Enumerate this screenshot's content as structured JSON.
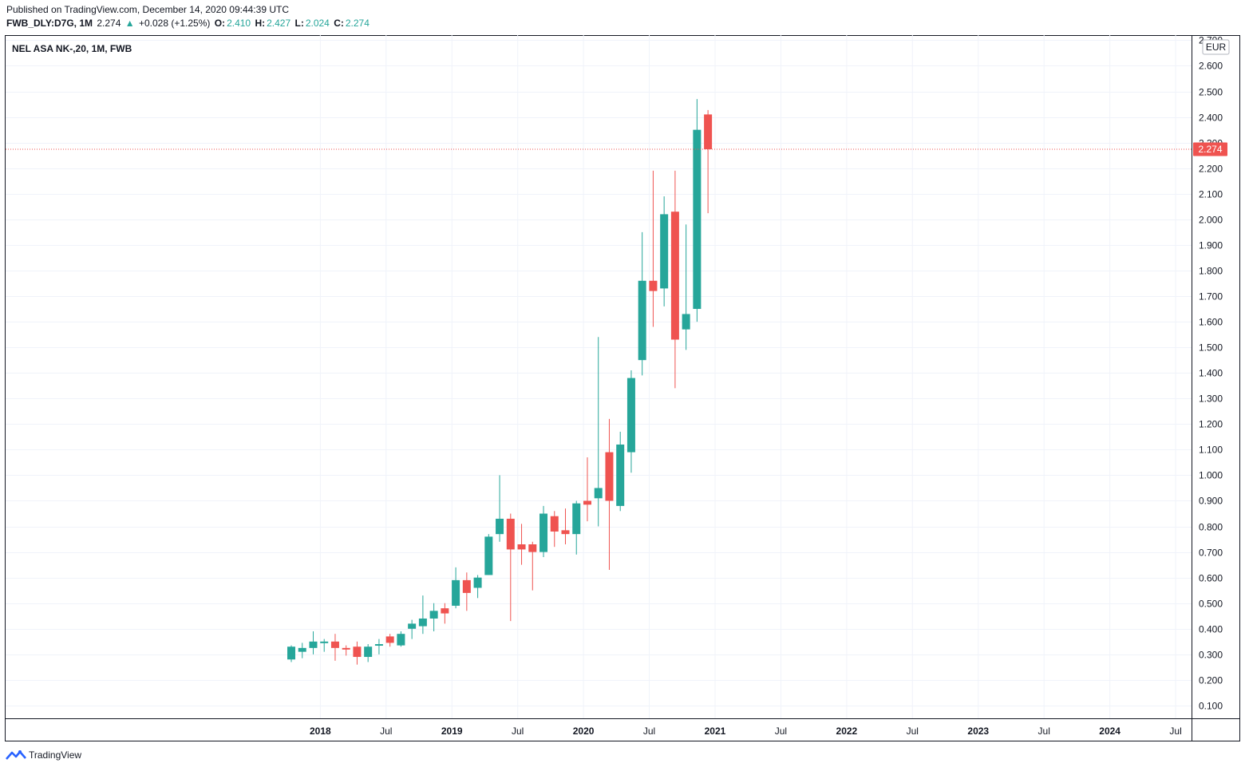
{
  "header": {
    "published": "Published on TradingView.com, December 14, 2020 09:44:39 UTC",
    "symbol": "FWB_DLY:D7G, 1M",
    "last": "2.274",
    "arrow": "▲",
    "change": "+0.028 (+1.25%)",
    "o_label": "O:",
    "o_value": "2.410",
    "h_label": "H:",
    "h_value": "2.427",
    "l_label": "L:",
    "l_value": "2.024",
    "c_label": "C:",
    "c_value": "2.274"
  },
  "legend_title": "NEL ASA NK-,20, 1M, FWB",
  "currency": "EUR",
  "price_badge": "2.274",
  "footer": {
    "brand": "TradingView"
  },
  "colors": {
    "up": "#26a69a",
    "down": "#ef5350",
    "grid": "#f0f3fa",
    "text": "#131722"
  },
  "chart_data": {
    "type": "candlestick",
    "interval": "1M",
    "y_axis": {
      "range": [
        0.05,
        2.72
      ],
      "ticks": [
        "0.100",
        "0.200",
        "0.300",
        "0.400",
        "0.500",
        "0.600",
        "0.700",
        "0.800",
        "0.900",
        "1.000",
        "1.100",
        "1.200",
        "1.300",
        "1.400",
        "1.500",
        "1.600",
        "1.700",
        "1.800",
        "1.900",
        "2.000",
        "2.100",
        "2.200",
        "2.300",
        "2.400",
        "2.500",
        "2.600",
        "2.700"
      ],
      "position": "right"
    },
    "x_axis": {
      "labels": [
        "2018",
        "Jul",
        "2019",
        "Jul",
        "2020",
        "Jul",
        "2021",
        "Jul",
        "2022",
        "Jul",
        "2023",
        "Jul",
        "2024",
        "Jul"
      ],
      "bold_labels": [
        "2018",
        "2019",
        "2020",
        "2021",
        "2022",
        "2023",
        "2024"
      ]
    },
    "last_price_line": 2.274,
    "candles": [
      {
        "d": "2017-10",
        "o": 0.28,
        "h": 0.335,
        "l": 0.27,
        "c": 0.33
      },
      {
        "d": "2017-11",
        "o": 0.31,
        "h": 0.345,
        "l": 0.285,
        "c": 0.325
      },
      {
        "d": "2017-12",
        "o": 0.325,
        "h": 0.39,
        "l": 0.3,
        "c": 0.35
      },
      {
        "d": "2018-01",
        "o": 0.345,
        "h": 0.36,
        "l": 0.31,
        "c": 0.35
      },
      {
        "d": "2018-02",
        "o": 0.35,
        "h": 0.38,
        "l": 0.275,
        "c": 0.325
      },
      {
        "d": "2018-03",
        "o": 0.325,
        "h": 0.335,
        "l": 0.295,
        "c": 0.32
      },
      {
        "d": "2018-04",
        "o": 0.33,
        "h": 0.35,
        "l": 0.26,
        "c": 0.29
      },
      {
        "d": "2018-05",
        "o": 0.29,
        "h": 0.34,
        "l": 0.27,
        "c": 0.33
      },
      {
        "d": "2018-06",
        "o": 0.335,
        "h": 0.36,
        "l": 0.3,
        "c": 0.34
      },
      {
        "d": "2018-07",
        "o": 0.37,
        "h": 0.38,
        "l": 0.33,
        "c": 0.345
      },
      {
        "d": "2018-08",
        "o": 0.335,
        "h": 0.39,
        "l": 0.33,
        "c": 0.38
      },
      {
        "d": "2018-09",
        "o": 0.4,
        "h": 0.435,
        "l": 0.36,
        "c": 0.42
      },
      {
        "d": "2018-10",
        "o": 0.41,
        "h": 0.53,
        "l": 0.38,
        "c": 0.44
      },
      {
        "d": "2018-11",
        "o": 0.44,
        "h": 0.5,
        "l": 0.39,
        "c": 0.47
      },
      {
        "d": "2018-12",
        "o": 0.48,
        "h": 0.5,
        "l": 0.42,
        "c": 0.46
      },
      {
        "d": "2019-01",
        "o": 0.49,
        "h": 0.64,
        "l": 0.48,
        "c": 0.59
      },
      {
        "d": "2019-02",
        "o": 0.59,
        "h": 0.62,
        "l": 0.47,
        "c": 0.54
      },
      {
        "d": "2019-03",
        "o": 0.56,
        "h": 0.61,
        "l": 0.52,
        "c": 0.6
      },
      {
        "d": "2019-04",
        "o": 0.61,
        "h": 0.77,
        "l": 0.61,
        "c": 0.76
      },
      {
        "d": "2019-05",
        "o": 0.77,
        "h": 1.0,
        "l": 0.74,
        "c": 0.83
      },
      {
        "d": "2019-06",
        "o": 0.83,
        "h": 0.85,
        "l": 0.43,
        "c": 0.71
      },
      {
        "d": "2019-07",
        "o": 0.73,
        "h": 0.81,
        "l": 0.65,
        "c": 0.71
      },
      {
        "d": "2019-08",
        "o": 0.73,
        "h": 0.74,
        "l": 0.55,
        "c": 0.7
      },
      {
        "d": "2019-09",
        "o": 0.7,
        "h": 0.88,
        "l": 0.68,
        "c": 0.85
      },
      {
        "d": "2019-10",
        "o": 0.84,
        "h": 0.86,
        "l": 0.72,
        "c": 0.78
      },
      {
        "d": "2019-11",
        "o": 0.785,
        "h": 0.87,
        "l": 0.73,
        "c": 0.77
      },
      {
        "d": "2019-12",
        "o": 0.77,
        "h": 0.9,
        "l": 0.69,
        "c": 0.89
      },
      {
        "d": "2020-01",
        "o": 0.9,
        "h": 1.07,
        "l": 0.82,
        "c": 0.885
      },
      {
        "d": "2020-02",
        "o": 0.91,
        "h": 1.54,
        "l": 0.8,
        "c": 0.95
      },
      {
        "d": "2020-03",
        "o": 1.09,
        "h": 1.22,
        "l": 0.63,
        "c": 0.9
      },
      {
        "d": "2020-04",
        "o": 0.88,
        "h": 1.17,
        "l": 0.86,
        "c": 1.12
      },
      {
        "d": "2020-05",
        "o": 1.09,
        "h": 1.41,
        "l": 1.01,
        "c": 1.38
      },
      {
        "d": "2020-06",
        "o": 1.45,
        "h": 1.95,
        "l": 1.39,
        "c": 1.76
      },
      {
        "d": "2020-07",
        "o": 1.76,
        "h": 2.19,
        "l": 1.58,
        "c": 1.72
      },
      {
        "d": "2020-08",
        "o": 1.73,
        "h": 2.09,
        "l": 1.66,
        "c": 2.02
      },
      {
        "d": "2020-09",
        "o": 2.03,
        "h": 2.19,
        "l": 1.34,
        "c": 1.53
      },
      {
        "d": "2020-10",
        "o": 1.57,
        "h": 1.98,
        "l": 1.49,
        "c": 1.63
      },
      {
        "d": "2020-11",
        "o": 1.65,
        "h": 2.47,
        "l": 1.6,
        "c": 2.35
      },
      {
        "d": "2020-12",
        "o": 2.41,
        "h": 2.427,
        "l": 2.024,
        "c": 2.274
      }
    ]
  }
}
